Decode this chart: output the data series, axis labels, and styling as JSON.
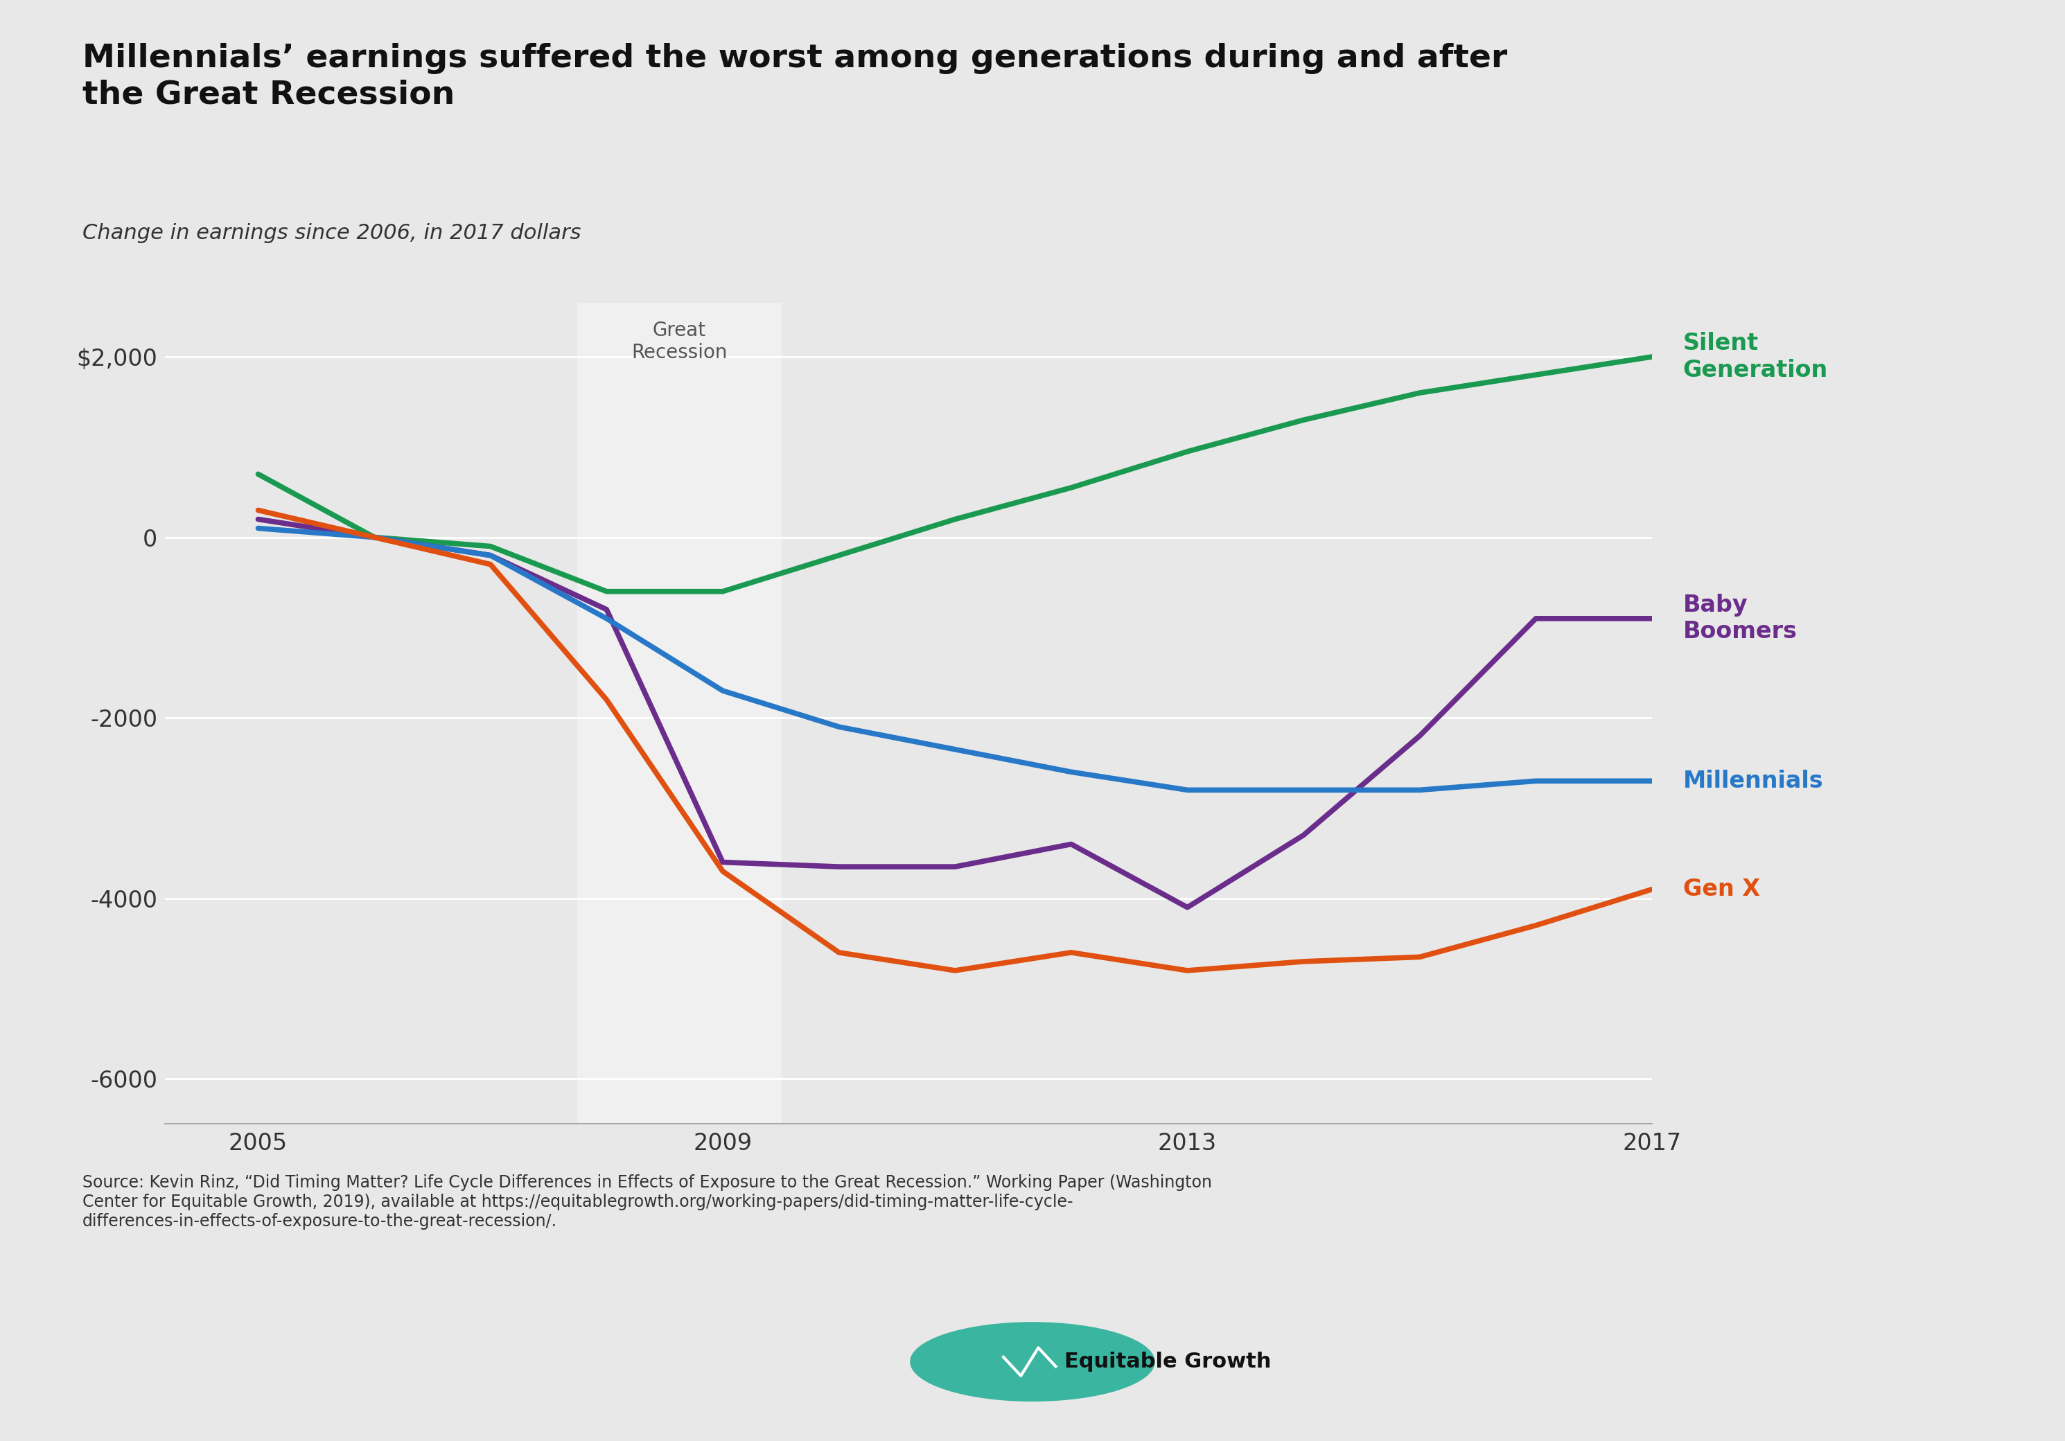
{
  "title": "Millennials’ earnings suffered the worst among generations during and after\nthe Great Recession",
  "subtitle": "Change in earnings since 2006, in 2017 dollars",
  "background_color": "#e8e8e8",
  "plot_bg_color": "#e8e8e8",
  "recession_start": 2007.75,
  "recession_end": 2009.5,
  "recession_label": "Great\nRecession",
  "years": [
    2005,
    2006,
    2007,
    2008,
    2009,
    2010,
    2011,
    2012,
    2013,
    2014,
    2015,
    2016,
    2017
  ],
  "silent_gen": [
    700,
    0,
    -100,
    -600,
    -600,
    -200,
    200,
    550,
    950,
    1300,
    1600,
    1800,
    2000
  ],
  "baby_boomers": [
    200,
    0,
    -200,
    -800,
    -3600,
    -3650,
    -3650,
    -3400,
    -4100,
    -3300,
    -2200,
    -900,
    -900
  ],
  "millennials": [
    100,
    0,
    -200,
    -900,
    -1700,
    -2100,
    -2350,
    -2600,
    -2800,
    -2800,
    -2800,
    -2700,
    -2700
  ],
  "gen_x": [
    300,
    0,
    -300,
    -1800,
    -3700,
    -4600,
    -4800,
    -4600,
    -4800,
    -4700,
    -4650,
    -4300,
    -3900
  ],
  "silent_gen_color": "#1a9a50",
  "baby_boomers_color": "#6b2d8b",
  "millennials_color": "#2878c8",
  "gen_x_color": "#e05010",
  "ylim": [
    -6500,
    2600
  ],
  "yticks": [
    2000,
    0,
    -2000,
    -4000,
    -6000
  ],
  "ytick_labels": [
    "$2,000",
    "0",
    "-2000",
    "-4000",
    "-6000"
  ],
  "xlim": [
    2004.2,
    2017.0
  ],
  "xticks": [
    2005,
    2009,
    2013,
    2017
  ],
  "source_text": "Source: Kevin Rinz, “Did Timing Matter? Life Cycle Differences in Effects of Exposure to the Great Recession.” Working Paper (Washington\nCenter for Equitable Growth, 2019), available at https://equitablegrowth.org/working-papers/did-timing-matter-life-cycle-\ndifferences-in-effects-of-exposure-to-the-great-recession/.",
  "line_width": 5.5,
  "title_fontsize": 34,
  "subtitle_fontsize": 22,
  "tick_fontsize": 24,
  "label_fontsize": 24,
  "source_fontsize": 17
}
